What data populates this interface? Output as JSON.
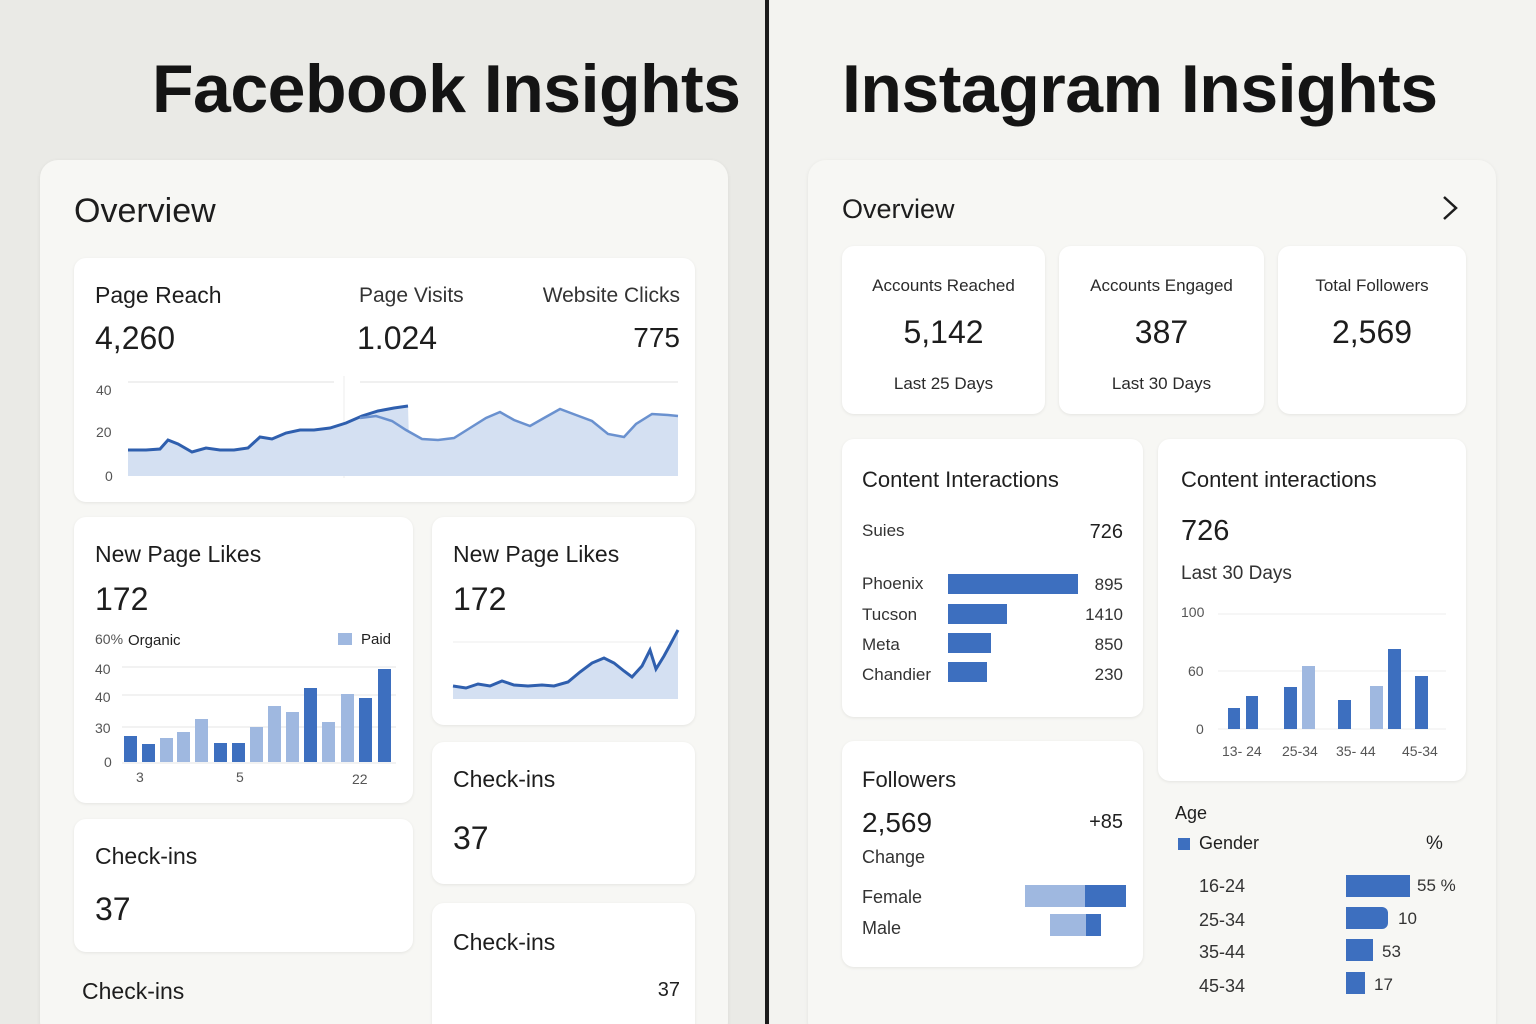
{
  "facebook": {
    "title": "Facebook Insights",
    "overview": "Overview",
    "reach": {
      "label": "Page Reach",
      "value": "4,260",
      "yticks": [
        "40",
        "20",
        "0"
      ]
    },
    "visits": {
      "label": "Page Visits",
      "value": "1.024"
    },
    "clicks": {
      "label": "Website Clicks",
      "value": "775"
    },
    "likes_a": {
      "label": "New Page Likes",
      "value": "172",
      "pct": "60%",
      "organic": "Organic",
      "paid": "Paid",
      "yticks": [
        "40",
        "40",
        "30",
        "0"
      ],
      "xticks": [
        "3",
        "5",
        "22"
      ]
    },
    "likes_b": {
      "label": "New Page Likes",
      "value": "172"
    },
    "checkins_a": {
      "label": "Check-ins",
      "value": "37"
    },
    "checkins_b": {
      "label": "Check-ins",
      "value": "37"
    },
    "checkins_c": {
      "label": "Check-ins",
      "value": "37"
    },
    "checkins_d": {
      "label": "Check-ins"
    }
  },
  "instagram": {
    "title": "Instagram Insights",
    "overview": "Overview",
    "reached": {
      "label": "Accounts Reached",
      "value": "5,142",
      "sub": "Last 25 Days"
    },
    "engaged": {
      "label": "Accounts Engaged",
      "value": "387",
      "sub": "Last 30 Days"
    },
    "followers_total": {
      "label": "Total Followers",
      "value": "2,569"
    },
    "interactions_list": {
      "title": "Content Interactions",
      "header_label": "Suies",
      "header_value": "726",
      "rows": [
        {
          "label": "Phoenix",
          "value": "895"
        },
        {
          "label": "Tucson",
          "value": "1410"
        },
        {
          "label": "Meta",
          "value": "850"
        },
        {
          "label": "Chandier",
          "value": "230"
        }
      ]
    },
    "interactions_chart": {
      "title": "Content interactions",
      "value": "726",
      "sub": "Last 30 Days",
      "yticks": [
        "100",
        "60",
        "0"
      ],
      "xticks": [
        "13- 24",
        "25-34",
        "35- 44",
        "45-34"
      ]
    },
    "followers": {
      "title": "Followers",
      "value": "2,569",
      "change_value": "+85",
      "change_label": "Change",
      "female": "Female",
      "male": "Male"
    },
    "age": {
      "title": "Age",
      "gender": "Gender",
      "pct": "%",
      "rows": [
        {
          "label": "16-24",
          "value": "55 %"
        },
        {
          "label": "25-34",
          "value": "10"
        },
        {
          "label": "35-44",
          "value": "53"
        },
        {
          "label": "45-34",
          "value": "17"
        }
      ]
    }
  },
  "colors": {
    "blue": "#3d6fbf",
    "light_blue": "#9fb8e0",
    "fill": "#d4e0f2",
    "line": "#2f5fae"
  }
}
